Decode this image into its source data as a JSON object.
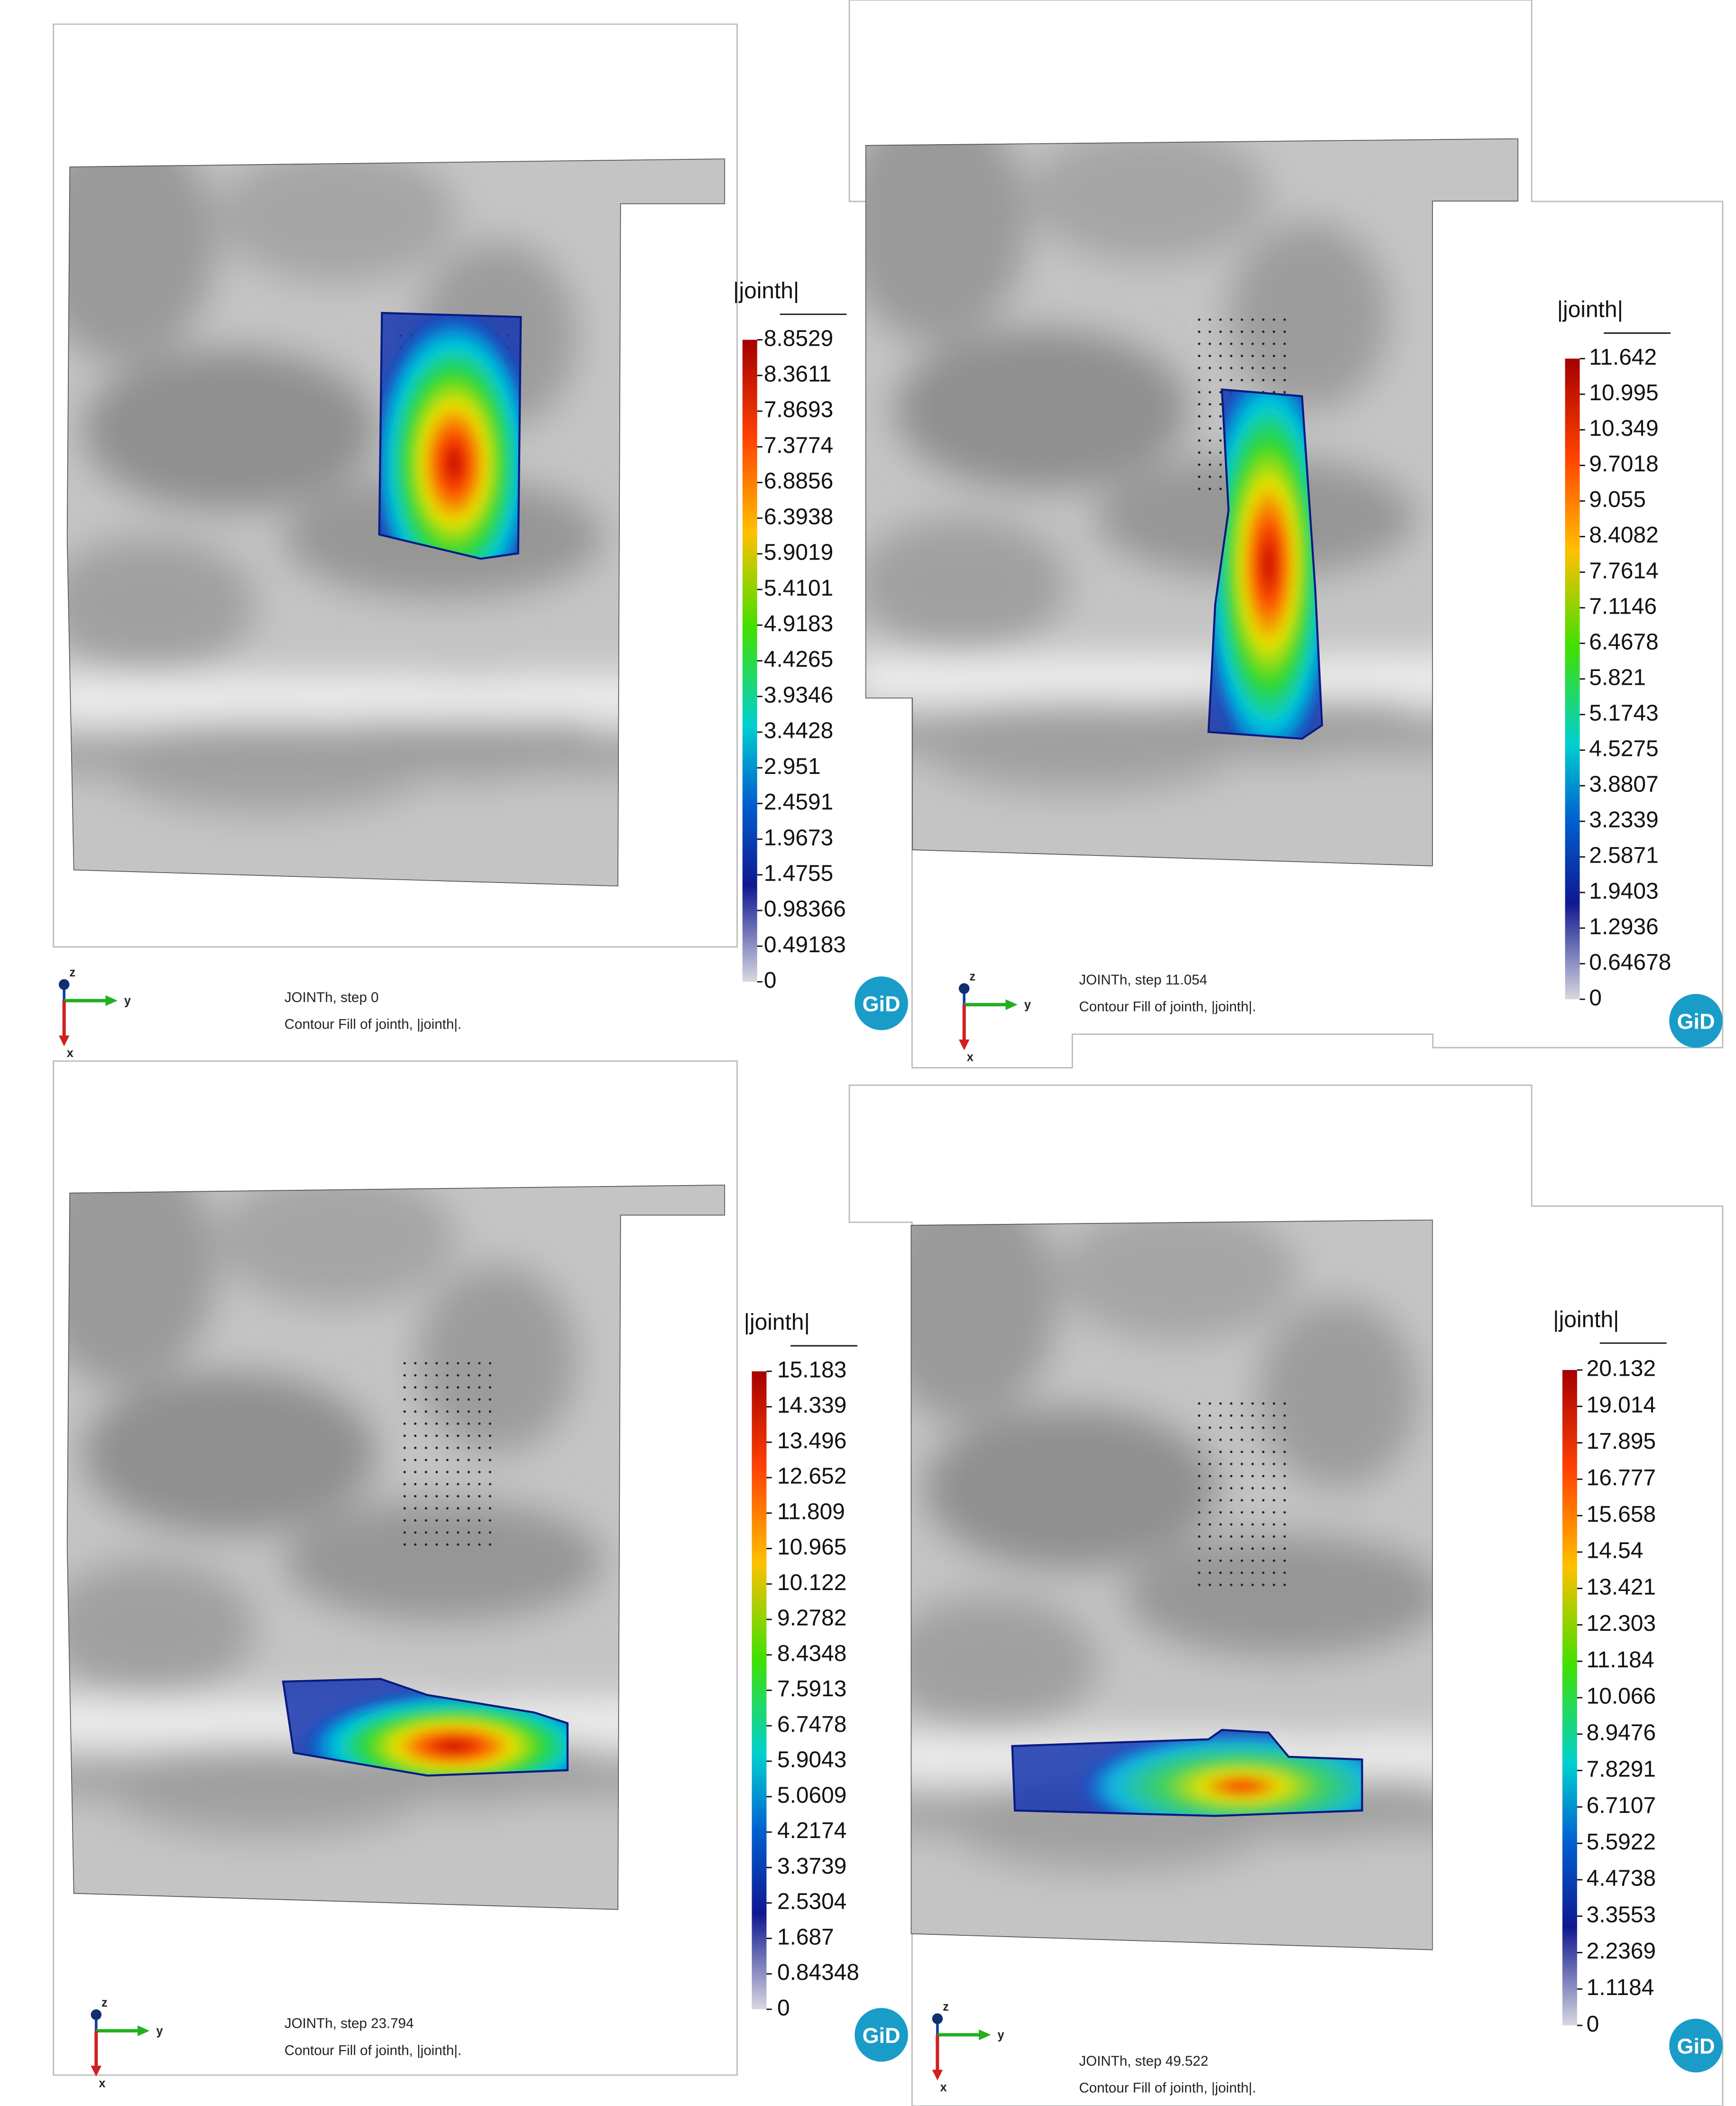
{
  "panels": [
    {
      "legend": {
        "title": "|jointh|",
        "values": [
          "8.8529",
          "8.3611",
          "7.8693",
          "7.3774",
          "6.8856",
          "6.3938",
          "5.9019",
          "5.4101",
          "4.9183",
          "4.4265",
          "3.9346",
          "3.4428",
          "2.951",
          "2.4591",
          "1.9673",
          "1.4755",
          "0.98366",
          "0.49183",
          "0"
        ]
      },
      "caption": [
        "JOINTh, step 0",
        "Contour Fill of jointh, |jointh|."
      ],
      "axes": {
        "z": "z",
        "y": "y",
        "x": "x"
      },
      "logo": "GiD"
    },
    {
      "legend": {
        "title": "|jointh|",
        "values": [
          "11.642",
          "10.995",
          "10.349",
          "9.7018",
          "9.055",
          "8.4082",
          "7.7614",
          "7.1146",
          "6.4678",
          "5.821",
          "5.1743",
          "4.5275",
          "3.8807",
          "3.2339",
          "2.5871",
          "1.9403",
          "1.2936",
          "0.64678",
          "0"
        ]
      },
      "caption": [
        "JOINTh, step 11.054",
        "Contour Fill of jointh, |jointh|."
      ],
      "axes": {
        "z": "z",
        "y": "y",
        "x": "x"
      },
      "logo": "GiD"
    },
    {
      "legend": {
        "title": "|jointh|",
        "values": [
          "15.183",
          "14.339",
          "13.496",
          "12.652",
          "11.809",
          "10.965",
          "10.122",
          "9.2782",
          "8.4348",
          "7.5913",
          "6.7478",
          "5.9043",
          "5.0609",
          "4.2174",
          "3.3739",
          "2.5304",
          "1.687",
          "0.84348",
          "0"
        ]
      },
      "caption": [
        "JOINTh, step 23.794",
        "Contour Fill of jointh, |jointh|."
      ],
      "axes": {
        "z": "z",
        "y": "y",
        "x": "x"
      },
      "logo": "GiD"
    },
    {
      "legend": {
        "title": "|jointh|",
        "values": [
          "20.132",
          "19.014",
          "17.895",
          "16.777",
          "15.658",
          "14.54",
          "13.421",
          "12.303",
          "11.184",
          "10.066",
          "8.9476",
          "7.8291",
          "6.7107",
          "5.5922",
          "4.4738",
          "3.3553",
          "2.2369",
          "1.1184",
          "0"
        ]
      },
      "caption": [
        "JOINTh, step 49.522",
        "Contour Fill of jointh, |jointh|."
      ],
      "axes": {
        "z": "z",
        "y": "y",
        "x": "x"
      },
      "logo": "GiD"
    }
  ]
}
